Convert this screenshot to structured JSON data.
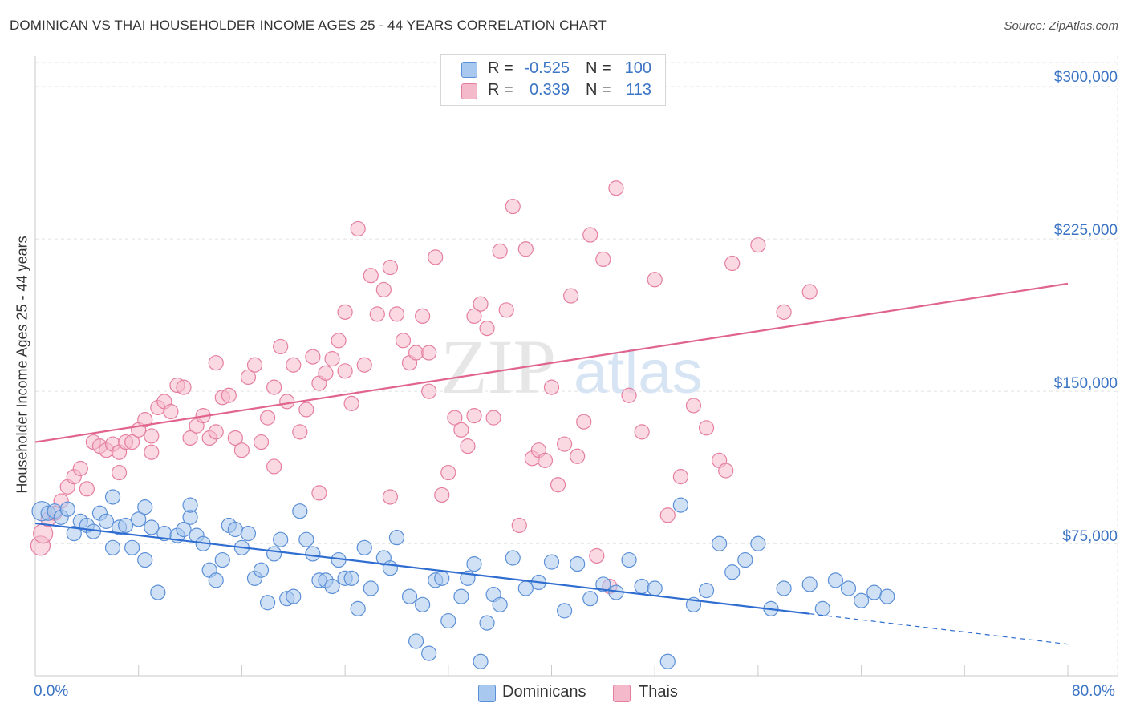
{
  "title": "DOMINICAN VS THAI HOUSEHOLDER INCOME AGES 25 - 44 YEARS CORRELATION CHART",
  "source": "Source: ZipAtlas.com",
  "watermark": {
    "part1": "ZIP",
    "part2": "atlas"
  },
  "legend": {
    "rows": [
      {
        "r_label": "R =",
        "r_value": "-0.525",
        "n_label": "N =",
        "n_value": "100",
        "fill": "#a9c8ef",
        "stroke": "#5b8fd6"
      },
      {
        "r_label": "R =",
        "r_value": "0.339",
        "n_label": "N =",
        "n_value": "113",
        "fill": "#f5b9cc",
        "stroke": "#e57fa0"
      }
    ]
  },
  "bottom_legend": [
    {
      "label": "Dominicans",
      "fill": "#a9c8ef",
      "stroke": "#5b8fd6"
    },
    {
      "label": "Thais",
      "fill": "#f5b9cc",
      "stroke": "#e57fa0"
    }
  ],
  "chart_data": {
    "type": "scatter",
    "title": "DOMINICAN VS THAI HOUSEHOLDER INCOME AGES 25 - 44 YEARS CORRELATION CHART",
    "xlabel": "",
    "ylabel": "Householder Income Ages 25 - 44 years",
    "xlim": [
      0,
      80
    ],
    "ylim": [
      10000,
      315000
    ],
    "x_tick_labels": [
      "0.0%",
      "80.0%"
    ],
    "y_ticks": [
      75000,
      150000,
      225000,
      300000
    ],
    "y_tick_labels": [
      "$75,000",
      "$150,000",
      "$225,000",
      "$300,000"
    ],
    "grid": true,
    "legend_position": "top-center",
    "series": [
      {
        "name": "Dominicans",
        "color": "#5b8fd6",
        "fill": "#a9c8ef",
        "trend": {
          "x": [
            0,
            60,
            80
          ],
          "y": [
            85000,
            40500,
            25500
          ],
          "solid_until": 60,
          "color": "#2f6dd1"
        },
        "points": [
          [
            0.5,
            91000
          ],
          [
            1,
            90000
          ],
          [
            1.5,
            91000
          ],
          [
            2,
            88000
          ],
          [
            2.5,
            92000
          ],
          [
            3,
            80000
          ],
          [
            3.5,
            86000
          ],
          [
            4,
            84000
          ],
          [
            4.5,
            81000
          ],
          [
            5,
            90000
          ],
          [
            5.5,
            86000
          ],
          [
            6,
            73000
          ],
          [
            6.5,
            83000
          ],
          [
            7,
            84000
          ],
          [
            6,
            98000
          ],
          [
            7.5,
            73000
          ],
          [
            8,
            87000
          ],
          [
            8.5,
            67000
          ],
          [
            9,
            83000
          ],
          [
            9.5,
            51000
          ],
          [
            8.5,
            93000
          ],
          [
            10,
            80000
          ],
          [
            11,
            79000
          ],
          [
            11.5,
            82000
          ],
          [
            12,
            88000
          ],
          [
            12.5,
            79000
          ],
          [
            13,
            75000
          ],
          [
            13.5,
            62000
          ],
          [
            14,
            57000
          ],
          [
            14.5,
            67000
          ],
          [
            12,
            94000
          ],
          [
            15,
            84000
          ],
          [
            15.5,
            82000
          ],
          [
            16,
            73000
          ],
          [
            16.5,
            80000
          ],
          [
            17,
            58000
          ],
          [
            17.5,
            62000
          ],
          [
            18,
            46000
          ],
          [
            18.5,
            70000
          ],
          [
            19,
            77000
          ],
          [
            19.5,
            48000
          ],
          [
            20,
            49000
          ],
          [
            20.5,
            91000
          ],
          [
            21,
            77000
          ],
          [
            21.5,
            70000
          ],
          [
            22,
            57000
          ],
          [
            22.5,
            57000
          ],
          [
            23,
            54000
          ],
          [
            23.5,
            67000
          ],
          [
            24,
            58000
          ],
          [
            24.5,
            58000
          ],
          [
            25,
            43000
          ],
          [
            25.5,
            73000
          ],
          [
            26,
            53000
          ],
          [
            27,
            68000
          ],
          [
            27.5,
            63000
          ],
          [
            28,
            78000
          ],
          [
            29,
            49000
          ],
          [
            29.5,
            27000
          ],
          [
            30,
            45000
          ],
          [
            30.5,
            21000
          ],
          [
            31,
            57000
          ],
          [
            31.5,
            58000
          ],
          [
            32,
            37000
          ],
          [
            33,
            49000
          ],
          [
            33.5,
            58000
          ],
          [
            34,
            65000
          ],
          [
            34.5,
            17000
          ],
          [
            35,
            36000
          ],
          [
            35.5,
            50000
          ],
          [
            36,
            45000
          ],
          [
            37,
            68000
          ],
          [
            38,
            53000
          ],
          [
            39,
            56000
          ],
          [
            40,
            66000
          ],
          [
            41,
            42000
          ],
          [
            42,
            65000
          ],
          [
            43,
            48000
          ],
          [
            44,
            55000
          ],
          [
            45,
            51000
          ],
          [
            46,
            67000
          ],
          [
            47,
            54000
          ],
          [
            48,
            53000
          ],
          [
            49,
            17000
          ],
          [
            50,
            94000
          ],
          [
            51,
            45000
          ],
          [
            52,
            52000
          ],
          [
            53,
            75000
          ],
          [
            54,
            61000
          ],
          [
            55,
            67000
          ],
          [
            56,
            75000
          ],
          [
            57,
            43000
          ],
          [
            58,
            53000
          ],
          [
            60,
            55000
          ],
          [
            61,
            43000
          ],
          [
            62,
            57000
          ],
          [
            63,
            53000
          ],
          [
            64,
            47000
          ],
          [
            65,
            51000
          ],
          [
            66,
            49000
          ]
        ]
      },
      {
        "name": "Thais",
        "color": "#e57fa0",
        "fill": "#f5b9cc",
        "trend": {
          "x": [
            0,
            80
          ],
          "y": [
            125000,
            203000
          ],
          "color": "#e0648e"
        },
        "points": [
          [
            0.4,
            74000
          ],
          [
            0.6,
            80000
          ],
          [
            1,
            87000
          ],
          [
            1.5,
            90000
          ],
          [
            2,
            96000
          ],
          [
            2.5,
            103000
          ],
          [
            3,
            108000
          ],
          [
            3.5,
            112000
          ],
          [
            4,
            102000
          ],
          [
            4.5,
            125000
          ],
          [
            5,
            123000
          ],
          [
            5.5,
            121000
          ],
          [
            6,
            124000
          ],
          [
            6.5,
            120000
          ],
          [
            7,
            125000
          ],
          [
            7.5,
            125000
          ],
          [
            8,
            131000
          ],
          [
            8.5,
            136000
          ],
          [
            9,
            128000
          ],
          [
            9.5,
            142000
          ],
          [
            10,
            145000
          ],
          [
            10.5,
            140000
          ],
          [
            11,
            153000
          ],
          [
            11.5,
            152000
          ],
          [
            12,
            127000
          ],
          [
            12.5,
            133000
          ],
          [
            13,
            138000
          ],
          [
            13.5,
            127000
          ],
          [
            14,
            130000
          ],
          [
            14.5,
            147000
          ],
          [
            15,
            148000
          ],
          [
            15.5,
            127000
          ],
          [
            16,
            121000
          ],
          [
            16.5,
            157000
          ],
          [
            17,
            163000
          ],
          [
            17.5,
            125000
          ],
          [
            18,
            137000
          ],
          [
            18.5,
            113000
          ],
          [
            19,
            172000
          ],
          [
            19.5,
            145000
          ],
          [
            20,
            163000
          ],
          [
            20.5,
            130000
          ],
          [
            21,
            141000
          ],
          [
            21.5,
            167000
          ],
          [
            22,
            154000
          ],
          [
            22.5,
            159000
          ],
          [
            23,
            166000
          ],
          [
            23.5,
            175000
          ],
          [
            24,
            160000
          ],
          [
            24.5,
            144000
          ],
          [
            25,
            230000
          ],
          [
            25.5,
            163000
          ],
          [
            26,
            207000
          ],
          [
            26.5,
            188000
          ],
          [
            27,
            200000
          ],
          [
            27.5,
            211000
          ],
          [
            28,
            188000
          ],
          [
            28.5,
            175000
          ],
          [
            29,
            164000
          ],
          [
            29.5,
            169000
          ],
          [
            30,
            187000
          ],
          [
            30.5,
            150000
          ],
          [
            31,
            216000
          ],
          [
            31.5,
            99000
          ],
          [
            32,
            110000
          ],
          [
            32.5,
            137000
          ],
          [
            33,
            131000
          ],
          [
            33.5,
            123000
          ],
          [
            34,
            187000
          ],
          [
            34.5,
            193000
          ],
          [
            35,
            181000
          ],
          [
            35.5,
            137000
          ],
          [
            36,
            219000
          ],
          [
            36.5,
            190000
          ],
          [
            37,
            241000
          ],
          [
            37.5,
            84000
          ],
          [
            38,
            220000
          ],
          [
            38.5,
            117000
          ],
          [
            39,
            121000
          ],
          [
            39.5,
            116000
          ],
          [
            40,
            152000
          ],
          [
            40.5,
            104000
          ],
          [
            41,
            124000
          ],
          [
            41.5,
            197000
          ],
          [
            42,
            118000
          ],
          [
            42.5,
            135000
          ],
          [
            43,
            227000
          ],
          [
            43.5,
            69000
          ],
          [
            44,
            215000
          ],
          [
            44.5,
            54000
          ],
          [
            45,
            250000
          ],
          [
            46,
            148000
          ],
          [
            47,
            130000
          ],
          [
            48,
            205000
          ],
          [
            49,
            89000
          ],
          [
            50,
            108000
          ],
          [
            51,
            143000
          ],
          [
            52,
            132000
          ],
          [
            53,
            116000
          ],
          [
            53.5,
            111000
          ],
          [
            54,
            213000
          ],
          [
            56,
            222000
          ],
          [
            58,
            189000
          ],
          [
            60,
            199000
          ],
          [
            18.5,
            152000
          ],
          [
            22,
            100000
          ],
          [
            34,
            138000
          ],
          [
            27.5,
            98000
          ],
          [
            24,
            189000
          ],
          [
            30.5,
            169000
          ],
          [
            14,
            164000
          ],
          [
            9,
            120000
          ],
          [
            6.5,
            110000
          ]
        ]
      }
    ]
  }
}
